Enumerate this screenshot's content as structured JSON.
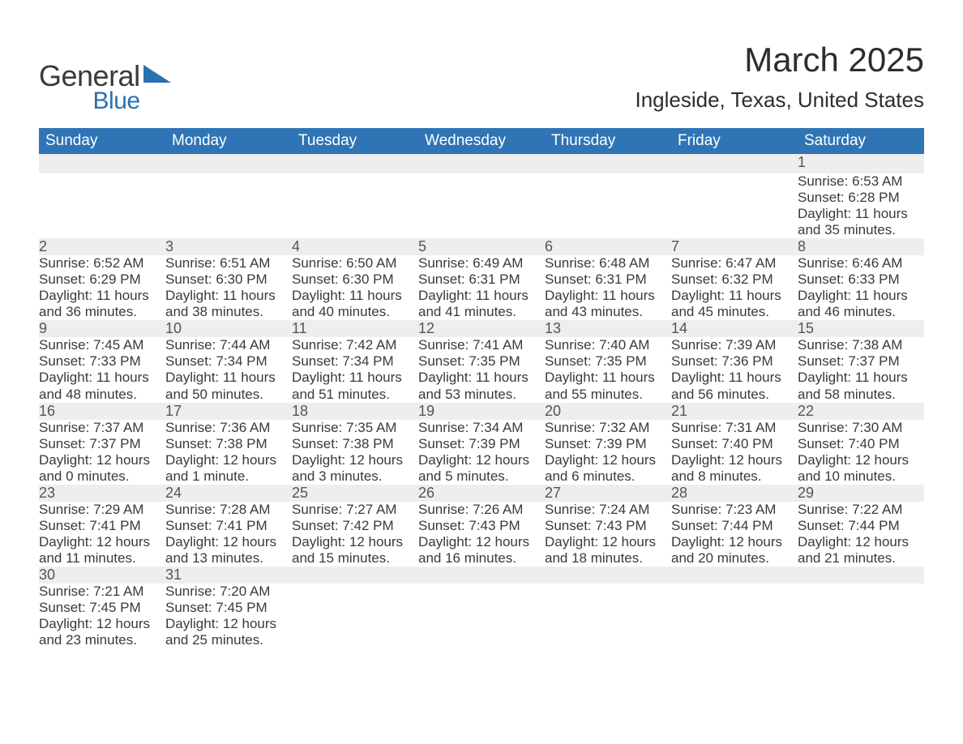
{
  "logo": {
    "word1": "General",
    "word2": "Blue"
  },
  "title": {
    "month": "March 2025",
    "location": "Ingleside, Texas, United States"
  },
  "colors": {
    "header_bg": "#2f75b5",
    "header_text": "#ffffff",
    "daynum_bg": "#eeeeee",
    "week_divider": "#2f75b5",
    "text": "#3a3a3a",
    "logo_blue": "#2a71b0"
  },
  "daysOfWeek": [
    "Sunday",
    "Monday",
    "Tuesday",
    "Wednesday",
    "Thursday",
    "Friday",
    "Saturday"
  ],
  "weeks": [
    [
      null,
      null,
      null,
      null,
      null,
      null,
      {
        "num": "1",
        "sunrise": "Sunrise: 6:53 AM",
        "sunset": "Sunset: 6:28 PM",
        "daylight": "Daylight: 11 hours and 35 minutes."
      }
    ],
    [
      {
        "num": "2",
        "sunrise": "Sunrise: 6:52 AM",
        "sunset": "Sunset: 6:29 PM",
        "daylight": "Daylight: 11 hours and 36 minutes."
      },
      {
        "num": "3",
        "sunrise": "Sunrise: 6:51 AM",
        "sunset": "Sunset: 6:30 PM",
        "daylight": "Daylight: 11 hours and 38 minutes."
      },
      {
        "num": "4",
        "sunrise": "Sunrise: 6:50 AM",
        "sunset": "Sunset: 6:30 PM",
        "daylight": "Daylight: 11 hours and 40 minutes."
      },
      {
        "num": "5",
        "sunrise": "Sunrise: 6:49 AM",
        "sunset": "Sunset: 6:31 PM",
        "daylight": "Daylight: 11 hours and 41 minutes."
      },
      {
        "num": "6",
        "sunrise": "Sunrise: 6:48 AM",
        "sunset": "Sunset: 6:31 PM",
        "daylight": "Daylight: 11 hours and 43 minutes."
      },
      {
        "num": "7",
        "sunrise": "Sunrise: 6:47 AM",
        "sunset": "Sunset: 6:32 PM",
        "daylight": "Daylight: 11 hours and 45 minutes."
      },
      {
        "num": "8",
        "sunrise": "Sunrise: 6:46 AM",
        "sunset": "Sunset: 6:33 PM",
        "daylight": "Daylight: 11 hours and 46 minutes."
      }
    ],
    [
      {
        "num": "9",
        "sunrise": "Sunrise: 7:45 AM",
        "sunset": "Sunset: 7:33 PM",
        "daylight": "Daylight: 11 hours and 48 minutes."
      },
      {
        "num": "10",
        "sunrise": "Sunrise: 7:44 AM",
        "sunset": "Sunset: 7:34 PM",
        "daylight": "Daylight: 11 hours and 50 minutes."
      },
      {
        "num": "11",
        "sunrise": "Sunrise: 7:42 AM",
        "sunset": "Sunset: 7:34 PM",
        "daylight": "Daylight: 11 hours and 51 minutes."
      },
      {
        "num": "12",
        "sunrise": "Sunrise: 7:41 AM",
        "sunset": "Sunset: 7:35 PM",
        "daylight": "Daylight: 11 hours and 53 minutes."
      },
      {
        "num": "13",
        "sunrise": "Sunrise: 7:40 AM",
        "sunset": "Sunset: 7:35 PM",
        "daylight": "Daylight: 11 hours and 55 minutes."
      },
      {
        "num": "14",
        "sunrise": "Sunrise: 7:39 AM",
        "sunset": "Sunset: 7:36 PM",
        "daylight": "Daylight: 11 hours and 56 minutes."
      },
      {
        "num": "15",
        "sunrise": "Sunrise: 7:38 AM",
        "sunset": "Sunset: 7:37 PM",
        "daylight": "Daylight: 11 hours and 58 minutes."
      }
    ],
    [
      {
        "num": "16",
        "sunrise": "Sunrise: 7:37 AM",
        "sunset": "Sunset: 7:37 PM",
        "daylight": "Daylight: 12 hours and 0 minutes."
      },
      {
        "num": "17",
        "sunrise": "Sunrise: 7:36 AM",
        "sunset": "Sunset: 7:38 PM",
        "daylight": "Daylight: 12 hours and 1 minute."
      },
      {
        "num": "18",
        "sunrise": "Sunrise: 7:35 AM",
        "sunset": "Sunset: 7:38 PM",
        "daylight": "Daylight: 12 hours and 3 minutes."
      },
      {
        "num": "19",
        "sunrise": "Sunrise: 7:34 AM",
        "sunset": "Sunset: 7:39 PM",
        "daylight": "Daylight: 12 hours and 5 minutes."
      },
      {
        "num": "20",
        "sunrise": "Sunrise: 7:32 AM",
        "sunset": "Sunset: 7:39 PM",
        "daylight": "Daylight: 12 hours and 6 minutes."
      },
      {
        "num": "21",
        "sunrise": "Sunrise: 7:31 AM",
        "sunset": "Sunset: 7:40 PM",
        "daylight": "Daylight: 12 hours and 8 minutes."
      },
      {
        "num": "22",
        "sunrise": "Sunrise: 7:30 AM",
        "sunset": "Sunset: 7:40 PM",
        "daylight": "Daylight: 12 hours and 10 minutes."
      }
    ],
    [
      {
        "num": "23",
        "sunrise": "Sunrise: 7:29 AM",
        "sunset": "Sunset: 7:41 PM",
        "daylight": "Daylight: 12 hours and 11 minutes."
      },
      {
        "num": "24",
        "sunrise": "Sunrise: 7:28 AM",
        "sunset": "Sunset: 7:41 PM",
        "daylight": "Daylight: 12 hours and 13 minutes."
      },
      {
        "num": "25",
        "sunrise": "Sunrise: 7:27 AM",
        "sunset": "Sunset: 7:42 PM",
        "daylight": "Daylight: 12 hours and 15 minutes."
      },
      {
        "num": "26",
        "sunrise": "Sunrise: 7:26 AM",
        "sunset": "Sunset: 7:43 PM",
        "daylight": "Daylight: 12 hours and 16 minutes."
      },
      {
        "num": "27",
        "sunrise": "Sunrise: 7:24 AM",
        "sunset": "Sunset: 7:43 PM",
        "daylight": "Daylight: 12 hours and 18 minutes."
      },
      {
        "num": "28",
        "sunrise": "Sunrise: 7:23 AM",
        "sunset": "Sunset: 7:44 PM",
        "daylight": "Daylight: 12 hours and 20 minutes."
      },
      {
        "num": "29",
        "sunrise": "Sunrise: 7:22 AM",
        "sunset": "Sunset: 7:44 PM",
        "daylight": "Daylight: 12 hours and 21 minutes."
      }
    ],
    [
      {
        "num": "30",
        "sunrise": "Sunrise: 7:21 AM",
        "sunset": "Sunset: 7:45 PM",
        "daylight": "Daylight: 12 hours and 23 minutes."
      },
      {
        "num": "31",
        "sunrise": "Sunrise: 7:20 AM",
        "sunset": "Sunset: 7:45 PM",
        "daylight": "Daylight: 12 hours and 25 minutes."
      },
      null,
      null,
      null,
      null,
      null
    ]
  ]
}
